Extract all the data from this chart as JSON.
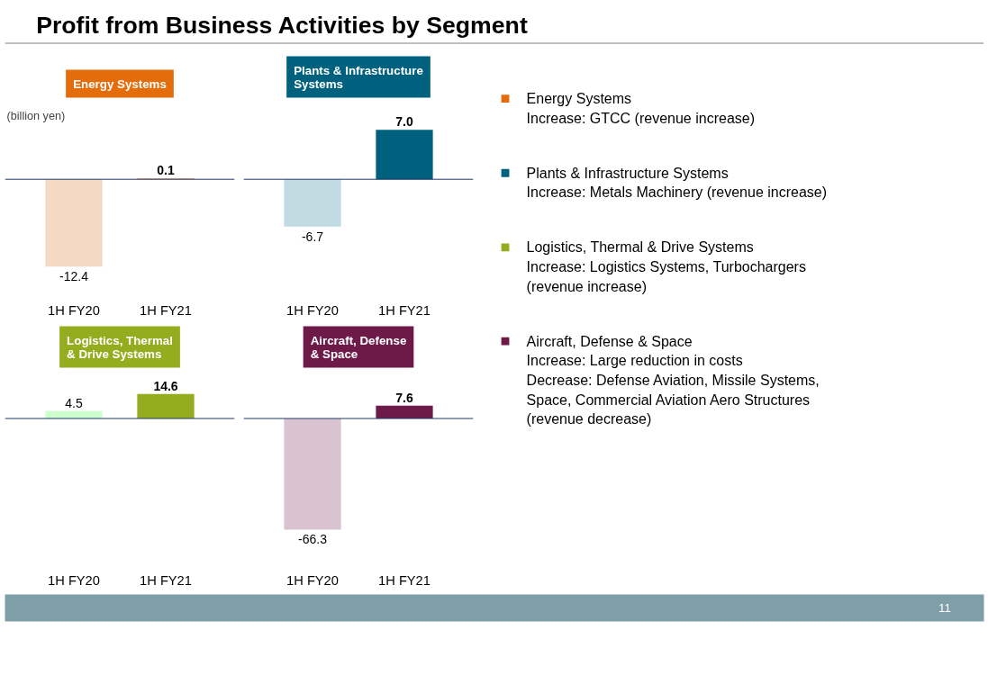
{
  "chart_data": [
    {
      "type": "bar",
      "title": "Energy Systems",
      "ylabel": "(billion yen)",
      "categories": [
        "1H FY20",
        "1H FY21"
      ],
      "values": [
        -12.4,
        0.1
      ],
      "value_labels": [
        "-12.4",
        "0.1"
      ],
      "colors": [
        "#f4d9c4",
        "#e46c0a"
      ],
      "ref_lines": [
        {
          "axis": "y",
          "value": 0,
          "color": "#1f3864"
        }
      ]
    },
    {
      "type": "bar",
      "title": "Plants & Infrastructure\nSystems",
      "categories": [
        "1H FY20",
        "1H FY21"
      ],
      "values": [
        -6.7,
        7.0
      ],
      "value_labels": [
        "-6.7",
        "7.0"
      ],
      "colors": [
        "#c1dbe3",
        "#00617f"
      ],
      "ref_lines": [
        {
          "axis": "y",
          "value": 0,
          "color": "#1f3864"
        }
      ]
    },
    {
      "type": "bar",
      "title": "Logistics, Thermal\n& Drive Systems",
      "categories": [
        "1H FY20",
        "1H FY21"
      ],
      "values": [
        4.5,
        14.6
      ],
      "value_labels": [
        "4.5",
        "14.6"
      ],
      "colors": [
        "#ccffcc",
        "#93ad1f"
      ],
      "ref_lines": [
        {
          "axis": "y",
          "value": 0,
          "color": "#1f3864"
        }
      ]
    },
    {
      "type": "bar",
      "title": "Aircraft, Defense\n& Space",
      "categories": [
        "1H FY20",
        "1H FY21"
      ],
      "values": [
        -66.3,
        7.6
      ],
      "value_labels": [
        "-66.3",
        "7.6"
      ],
      "colors": [
        "#d9c3d0",
        "#6d1a49"
      ],
      "ref_lines": [
        {
          "axis": "y",
          "value": 0,
          "color": "#1f3864"
        }
      ]
    },
    {
      "type": "other",
      "title": "Profit from Business Activities by Segment",
      "series": [
        {
          "name": "Energy Systems",
          "color": "#e46c0a"
        },
        {
          "name": "Plants & Infrastructure Systems",
          "color": "#00617f"
        },
        {
          "name": "Logistics, Thermal & Drive Systems",
          "color": "#93ad1f"
        },
        {
          "name": "Aircraft, Defense & Space",
          "color": "#6d1a49"
        }
      ],
      "annotations": [
        "Increase: GTCC (revenue increase)",
        "Increase: Metals Machinery (revenue increase)",
        "Increase: Logistics Systems, Turbochargers\n(revenue increase)",
        "Increase: Large reduction in costs\nDecrease: Defense Aviation, Missile Systems,\nSpace, Commercial Aviation Aero Structures\n(revenue decrease)",
        "11"
      ]
    }
  ]
}
